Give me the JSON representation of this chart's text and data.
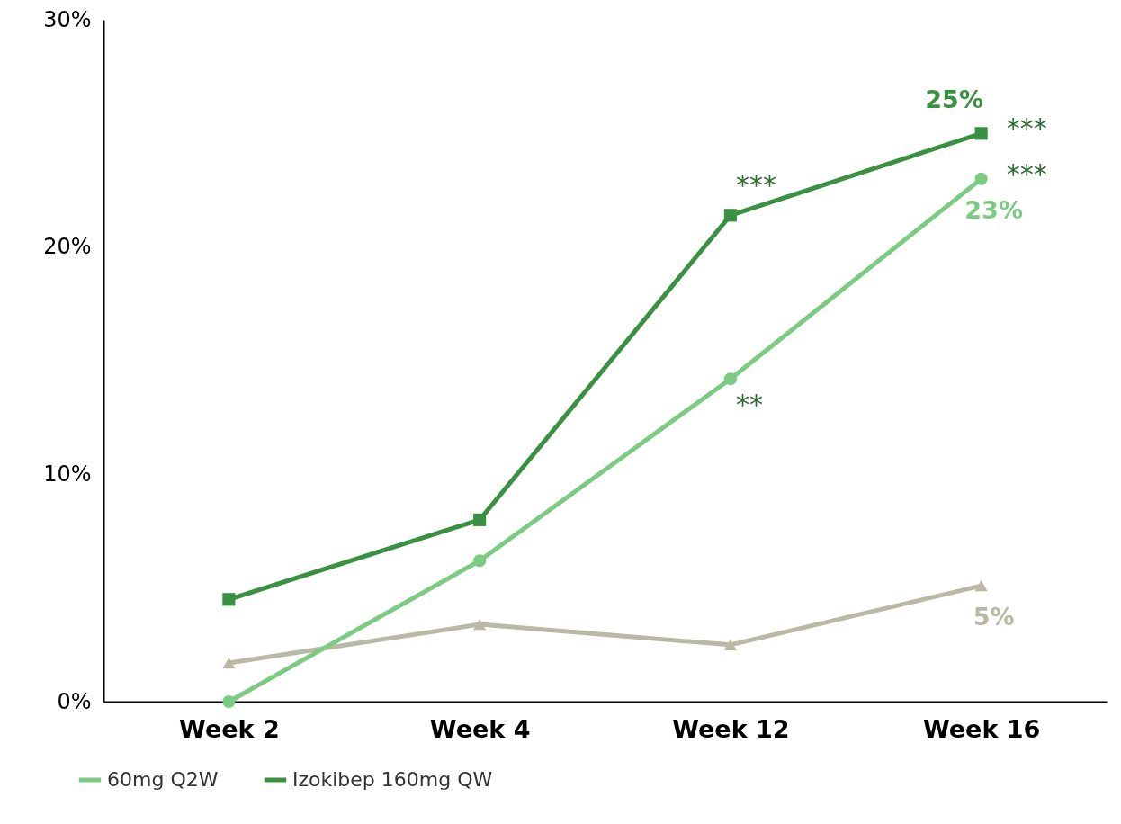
{
  "chart_data": {
    "type": "line",
    "categories": [
      "Week 2",
      "Week 4",
      "Week 12",
      "Week 16"
    ],
    "series": [
      {
        "color": "#bab9a5",
        "marker": "triangle",
        "values": [
          1.7,
          3.4,
          2.5,
          5.1
        ],
        "value_labels": [
          null,
          null,
          null,
          "5%"
        ]
      },
      {
        "name": "60mg Q2W",
        "color": "#7ccb82",
        "marker": "circle",
        "values": [
          0,
          6.2,
          14.2,
          23.0
        ],
        "value_labels": [
          null,
          null,
          null,
          "23%"
        ]
      },
      {
        "name": "Izokibep 160mg QW",
        "color": "#3a9142",
        "marker": "square",
        "values": [
          4.5,
          8.0,
          21.4,
          25.0
        ],
        "value_labels": [
          null,
          null,
          null,
          "25%"
        ]
      }
    ],
    "ylim": [
      0,
      30
    ],
    "yticks": [
      {
        "value": 0,
        "label": "0%"
      },
      {
        "value": 10,
        "label": "10%"
      },
      {
        "value": 20,
        "label": "20%"
      },
      {
        "value": 30,
        "label": "30%"
      }
    ],
    "annotations": [
      {
        "text": "***",
        "x": "Week 12",
        "y": 21.4
      },
      {
        "text": "**",
        "x": "Week 12",
        "y": 14.2
      },
      {
        "text": "***",
        "x": "Week 16",
        "y": 25.0
      },
      {
        "text": "***",
        "x": "Week 16",
        "y": 23.0
      }
    ],
    "grid": false,
    "legend": "bottom",
    "line_style": "solid"
  }
}
